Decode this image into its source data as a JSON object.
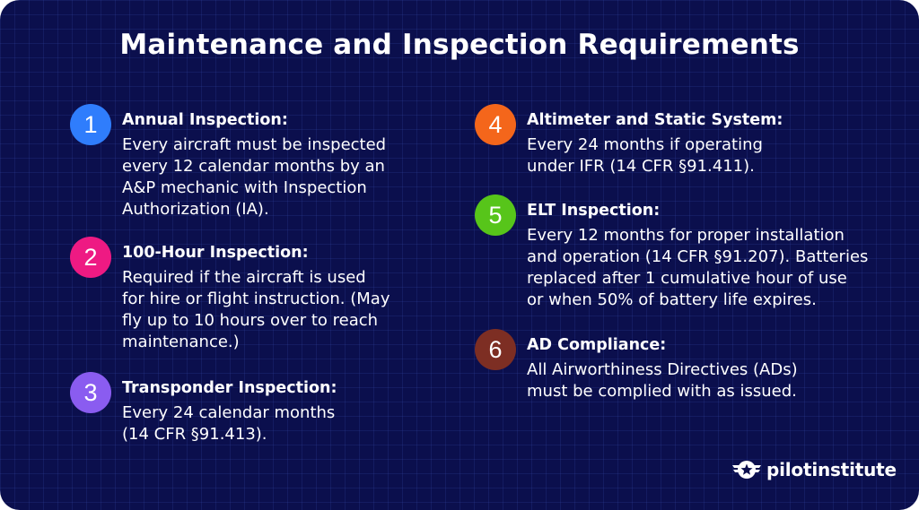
{
  "title": "Maintenance and Inspection Requirements",
  "items": [
    {
      "number": "1",
      "color": "#2f7dfc",
      "heading": "Annual Inspection:",
      "lines": [
        "Every aircraft must be inspected",
        "every 12 calendar months by an",
        "A&P mechanic with Inspection",
        "Authorization (IA)."
      ]
    },
    {
      "number": "2",
      "color": "#ee1a83",
      "heading": "100-Hour Inspection:",
      "lines": [
        "Required if the aircraft is used",
        "for hire or flight instruction. (May",
        "fly up to 10 hours over to reach",
        "maintenance.)"
      ]
    },
    {
      "number": "3",
      "color": "#8a5cf0",
      "heading": "Transponder Inspection:",
      "lines": [
        "Every 24 calendar months",
        "(14 CFR §91.413)."
      ]
    },
    {
      "number": "4",
      "color": "#f4661b",
      "heading": "Altimeter and Static System:",
      "lines": [
        "Every 24 months if operating",
        "under IFR (14 CFR §91.411)."
      ]
    },
    {
      "number": "5",
      "color": "#57c51a",
      "heading": "ELT Inspection:",
      "lines": [
        "Every 12 months for proper installation",
        "and operation (14 CFR §91.207). Batteries",
        "replaced after 1 cumulative hour of use",
        "or when 50% of battery life expires."
      ]
    },
    {
      "number": "6",
      "color": "#7d2e23",
      "heading": "AD Compliance:",
      "lines": [
        "All Airworthiness Directives (ADs)",
        "must be complied with as issued."
      ]
    }
  ],
  "logo": {
    "text": "pilotinstitute",
    "icon": "star-wings-icon"
  }
}
